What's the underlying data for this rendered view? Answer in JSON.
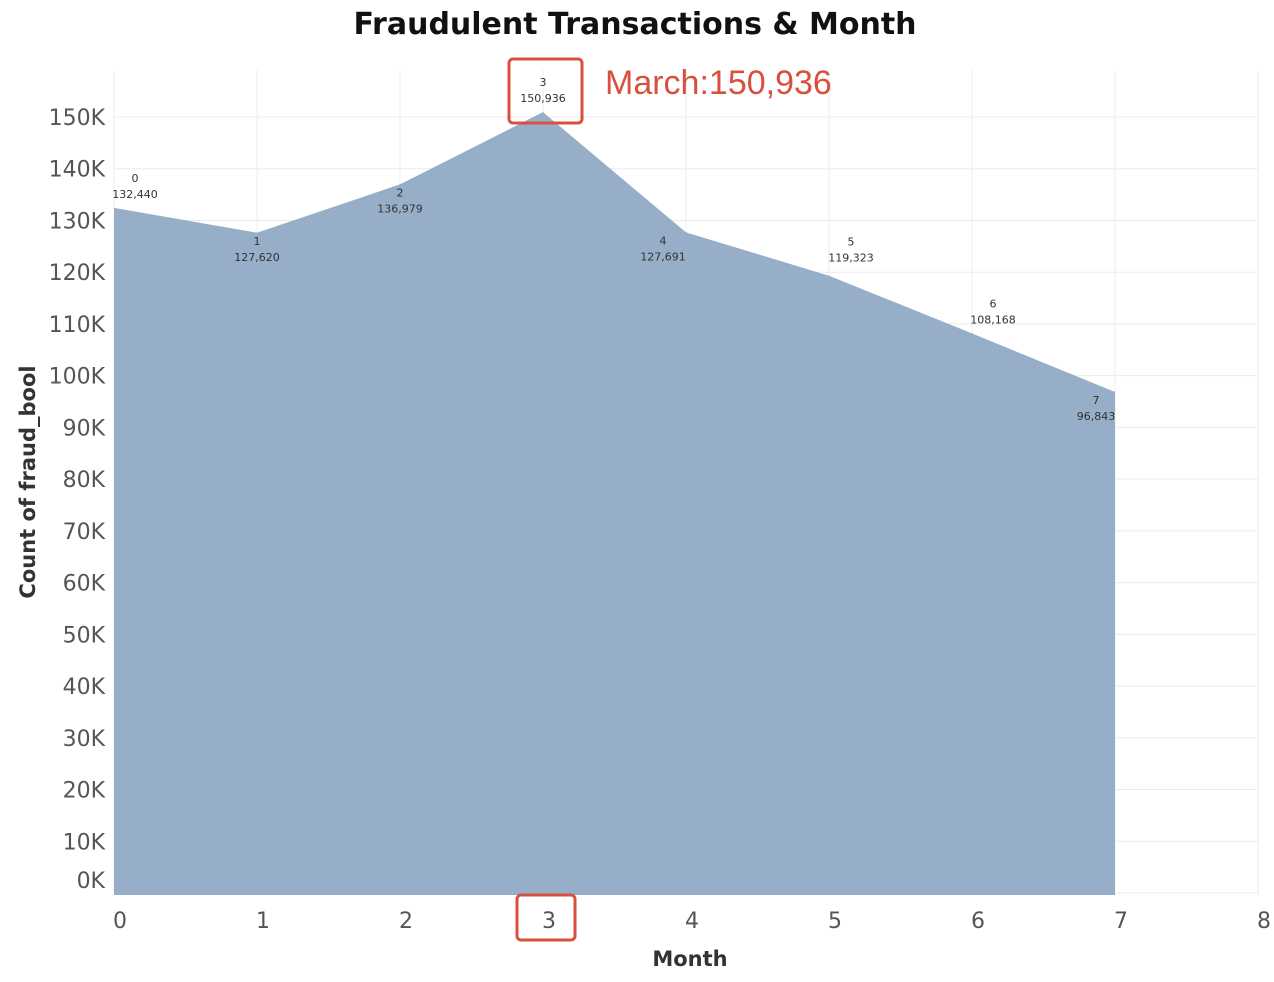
{
  "chart_data": {
    "type": "area",
    "title": "Fraudulent Transactions & Month",
    "xlabel": "Month",
    "ylabel": "Count of fraud_bool",
    "x": [
      0,
      1,
      2,
      3,
      4,
      5,
      6,
      7
    ],
    "values": [
      132440,
      127620,
      136979,
      150936,
      127691,
      119323,
      108168,
      96843
    ],
    "value_labels": [
      "132,440",
      "127,620",
      "136,979",
      "150,936",
      "127,691",
      "119,323",
      "108,168",
      "96,843"
    ],
    "x_ticks": [
      "0",
      "1",
      "2",
      "3",
      "4",
      "5",
      "6",
      "7",
      "8"
    ],
    "y_ticks": [
      "0K",
      "10K",
      "20K",
      "30K",
      "40K",
      "50K",
      "60K",
      "70K",
      "80K",
      "90K",
      "100K",
      "110K",
      "120K",
      "130K",
      "140K",
      "150K"
    ],
    "xlim": [
      0,
      8
    ],
    "ylim": [
      0,
      150000
    ],
    "grid": true,
    "highlight": {
      "x": 3,
      "text": "March:150,936"
    },
    "colors": {
      "area": "#97aec8",
      "highlight": "#d9503f",
      "grid": "#ececec"
    }
  }
}
